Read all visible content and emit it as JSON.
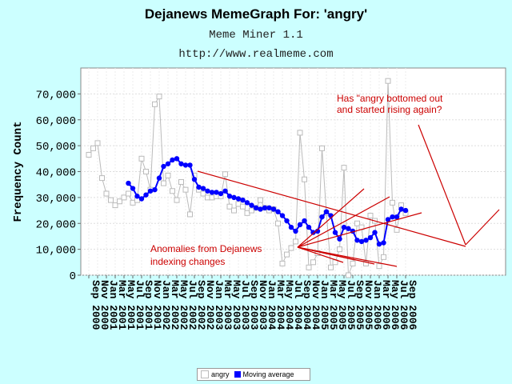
{
  "header": {
    "title": "Dejanews MemeGraph For: 'angry'",
    "subtitle": "Meme Miner 1.1",
    "url": "http://www.realmeme.com"
  },
  "colors": {
    "background": "#ccffff",
    "raw_series": "#bbbbbb",
    "moving_average": "#0000ff",
    "annotation": "#cc0000"
  },
  "chart_data": {
    "type": "line",
    "title": "Dejanews MemeGraph For: 'angry'",
    "ylabel": "Frequency Count",
    "xlabel": "",
    "ylim": [
      0,
      80000
    ],
    "yticks": [
      0,
      10000,
      20000,
      30000,
      40000,
      50000,
      60000,
      70000
    ],
    "ytick_labels": [
      "0",
      "10,000",
      "20,000",
      "30,000",
      "40,000",
      "50,000",
      "60,000",
      "70,000"
    ],
    "xtick_labels": [
      "Sep 2000",
      "Nov 2000",
      "Jan 2001",
      "Mar 2001",
      "May 2001",
      "Jul 2001",
      "Sep 2001",
      "Nov 2001",
      "Jan 2002",
      "Mar 2002",
      "May 2002",
      "Jul 2002",
      "Sep 2002",
      "Nov 2002",
      "Jan 2003",
      "Mar 2003",
      "May 2003",
      "Jul 2003",
      "Sep 2003",
      "Nov 2003",
      "Jan 2004",
      "Mar 2004",
      "May 2004",
      "Jul 2004",
      "Sep 2004",
      "Nov 2004",
      "Jan 2005",
      "Mar 2005",
      "May 2005",
      "Jul 2005",
      "Sep 2005",
      "Nov 2005",
      "Jan 2006",
      "Mar 2006",
      "May 2006",
      "Jul 2006",
      "Sep 2006"
    ],
    "grid": true,
    "legend": "bottom",
    "series": [
      {
        "name": "angry",
        "values": [
          46500,
          49000,
          51000,
          37500,
          31500,
          29000,
          27000,
          28500,
          30000,
          31500,
          28000,
          29000,
          45000,
          40000,
          33000,
          66000,
          69000,
          35500,
          38500,
          32500,
          29000,
          36000,
          33000,
          23500,
          38500,
          33000,
          31500,
          30000,
          30000,
          30500,
          30500,
          39000,
          26500,
          25000,
          27500,
          26500,
          24000,
          25000,
          26000,
          29000,
          26000,
          25000,
          25500,
          20000,
          4500,
          8000,
          10500,
          13000,
          55000,
          37000,
          3000,
          5000,
          8500,
          49000,
          24000,
          3000,
          5000,
          10000,
          41500,
          0,
          4500,
          20000,
          18500,
          4500,
          23000,
          21000,
          3500,
          7000,
          75000,
          28000,
          17500,
          27000,
          24000
        ]
      },
      {
        "name": "Moving average",
        "values": [
          null,
          null,
          null,
          null,
          null,
          null,
          null,
          null,
          null,
          35500,
          33500,
          30500,
          29500,
          31000,
          32500,
          33000,
          37500,
          42000,
          43000,
          44500,
          45000,
          43000,
          42500,
          42500,
          37000,
          34000,
          33500,
          32500,
          32000,
          32000,
          31500,
          32500,
          30500,
          30000,
          29500,
          29000,
          28000,
          27000,
          26000,
          25500,
          26000,
          26000,
          25500,
          24500,
          23000,
          21000,
          18500,
          17000,
          19500,
          21000,
          18500,
          16500,
          17000,
          22500,
          24500,
          23000,
          16500,
          14000,
          18500,
          18000,
          17000,
          13500,
          13000,
          13500,
          14500,
          16500,
          12000,
          12500,
          21500,
          22500,
          22500,
          25500,
          25000
        ]
      }
    ],
    "annotations": [
      {
        "text_lines": [
          "Has \"angry bottomed out",
          "and started rising again?"
        ]
      },
      {
        "text_lines": [
          "Anomalies from Dejanews",
          "indexing changes"
        ]
      }
    ]
  }
}
